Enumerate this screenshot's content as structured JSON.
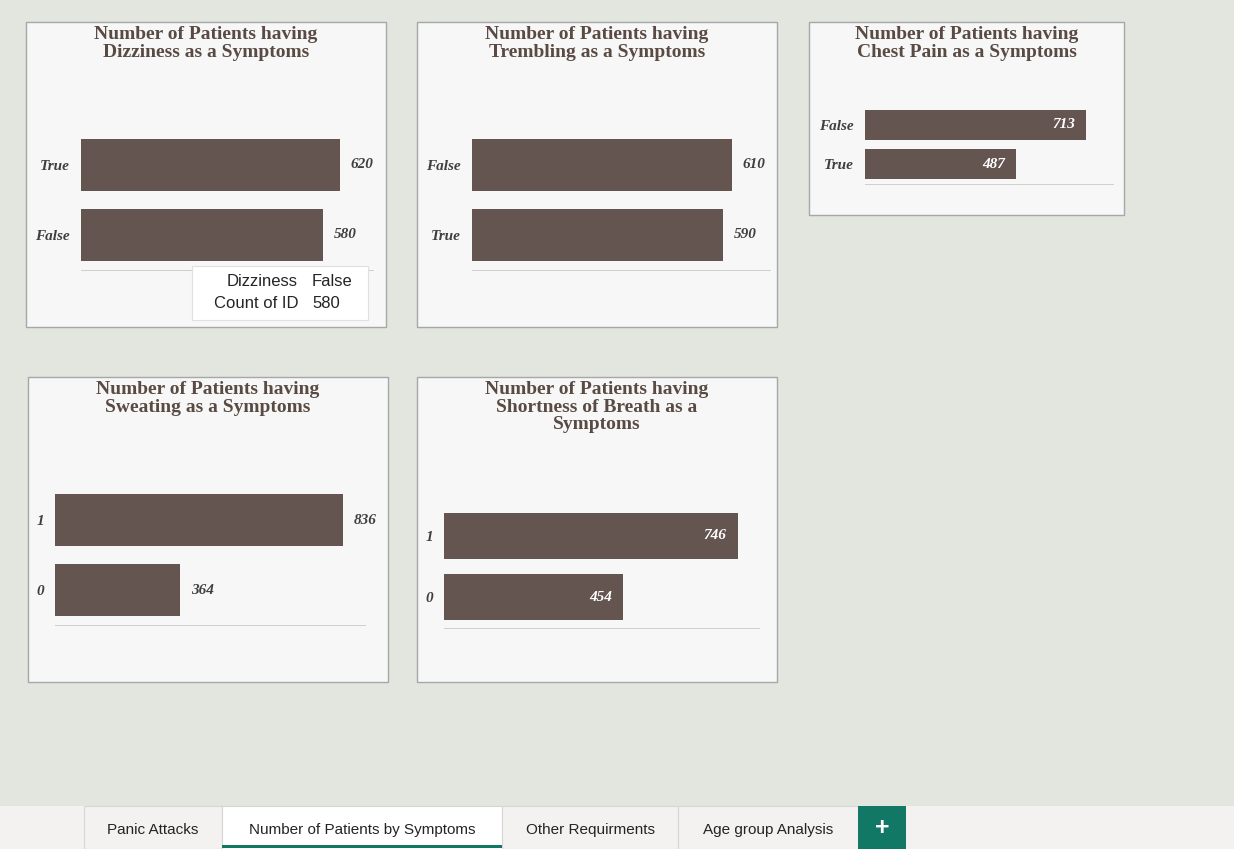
{
  "chart_data": [
    {
      "type": "bar",
      "title": "Number of Patients having Dizziness as a Symptoms",
      "categories": [
        "True",
        "False"
      ],
      "values": [
        620,
        580
      ],
      "color": "#655550",
      "orientation": "horizontal",
      "data_labels": true,
      "tick_labels": "y",
      "xlim": [
        0,
        700
      ],
      "xticks": []
    },
    {
      "type": "bar",
      "title": "Number of Patients having Trembling as a Symptoms",
      "categories": [
        "False",
        "True"
      ],
      "values": [
        610,
        590
      ],
      "color": "#655550",
      "orientation": "horizontal",
      "data_labels": true,
      "tick_labels": "y",
      "xlim": [
        0,
        700
      ],
      "xticks": []
    },
    {
      "type": "bar",
      "title": "Number of Patients having Chest Pain as a Symptoms",
      "categories": [
        "False",
        "True"
      ],
      "values": [
        713,
        487
      ],
      "color": "#655550",
      "orientation": "horizontal",
      "data_labels": true,
      "tick_labels": "y",
      "xlim": [
        0,
        800
      ],
      "xticks": []
    },
    {
      "type": "bar",
      "title": "Number of Patients having Sweating as a Symptoms",
      "categories": [
        "1",
        "0"
      ],
      "values": [
        836,
        364
      ],
      "color": "#655550",
      "orientation": "horizontal",
      "data_labels": true,
      "tick_labels": "y",
      "xlim": [
        0,
        900
      ],
      "xticks": []
    },
    {
      "type": "bar",
      "title": "Number of Patients having Shortness of Breath as a Symptoms",
      "categories": [
        "1",
        "0"
      ],
      "values": [
        746,
        454
      ],
      "color": "#655550",
      "orientation": "horizontal",
      "data_labels": true,
      "tick_labels": "y",
      "xlim": [
        0,
        800
      ],
      "xticks": []
    }
  ],
  "tooltip": {
    "rows": [
      [
        "Dizziness",
        "False"
      ],
      [
        "Count of ID",
        "580"
      ]
    ]
  },
  "tabs": {
    "items": [
      "Panic Attacks",
      "Number of Patients by Symptoms",
      "Other Requirments",
      "Age group Analysis"
    ],
    "active": "Number of Patients by Symptoms",
    "add_button": "+"
  }
}
